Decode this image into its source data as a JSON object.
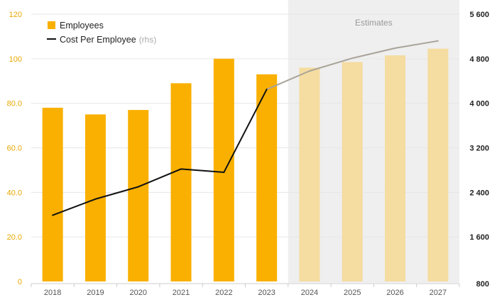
{
  "chart_data": {
    "type": "bar",
    "categories": [
      "2018",
      "2019",
      "2020",
      "2021",
      "2022",
      "2023",
      "2024",
      "2025",
      "2026",
      "2027"
    ],
    "series": [
      {
        "name": "Employees",
        "kind": "bar",
        "axis": "left",
        "values": [
          78,
          75,
          77,
          89,
          100,
          93,
          96,
          98.5,
          101.5,
          104.5
        ],
        "color": "#f9b000",
        "estimate_color": "#f5dca0"
      },
      {
        "name": "Cost Per Employee",
        "name_note": "(rhs)",
        "kind": "line",
        "axis": "right",
        "values": [
          1990,
          2280,
          2500,
          2820,
          2760,
          4250,
          4580,
          4810,
          4990,
          5120
        ],
        "color": "#111111",
        "estimate_color": "#a9a49a"
      }
    ],
    "estimate_start_index": 6,
    "estimate_label": "Estimates",
    "estimate_shade_color": "#efefef",
    "y_left": {
      "ylim": [
        0,
        120
      ],
      "ticks": [
        0,
        20,
        40,
        60,
        80,
        100,
        120
      ],
      "tick_labels": [
        "0",
        "20.0",
        "40.0",
        "60.0",
        "80.0",
        "100",
        "120"
      ],
      "color": "#e8a800"
    },
    "y_right": {
      "ylim": [
        800,
        5600
      ],
      "ticks": [
        800,
        1600,
        2400,
        3200,
        4000,
        4800,
        5600
      ],
      "tick_labels": [
        "800",
        "1 600",
        "2 400",
        "3 200",
        "4 000",
        "4 800",
        "5 600"
      ]
    },
    "grid": true,
    "legend_position": "top-left"
  }
}
